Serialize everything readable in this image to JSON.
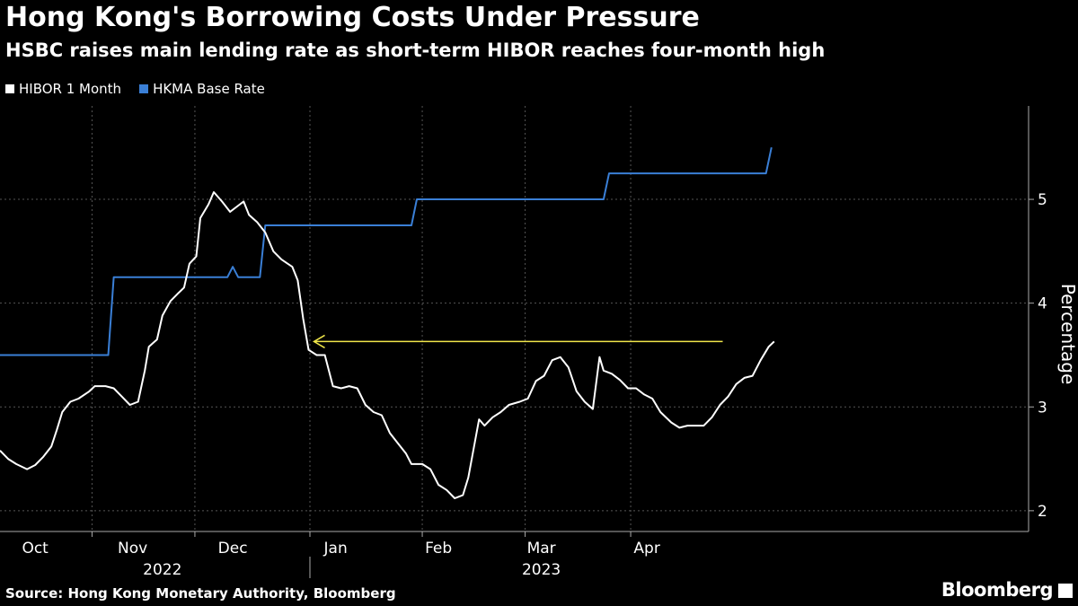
{
  "chart_data": {
    "type": "line",
    "title": "Hong Kong's Borrowing Costs Under Pressure",
    "subtitle": "HSBC raises main lending rate as short-term HIBOR reaches four-month high",
    "ylabel": "Percentage",
    "ylim": [
      1.8,
      5.9
    ],
    "yticks": [
      2,
      3,
      4,
      5
    ],
    "xlim": [
      0,
      38
    ],
    "month_labels": [
      {
        "label": "Oct",
        "x": 1.3
      },
      {
        "label": "Nov",
        "x": 4.9
      },
      {
        "label": "Dec",
        "x": 8.6
      },
      {
        "label": "Jan",
        "x": 12.4
      },
      {
        "label": "Feb",
        "x": 16.2
      },
      {
        "label": "Mar",
        "x": 20.0
      },
      {
        "label": "Apr",
        "x": 23.9
      }
    ],
    "year_labels": [
      {
        "label": "2022",
        "x": 6.0
      },
      {
        "label": "2023",
        "x": 20.0
      }
    ],
    "year_separator_x": 11.45,
    "month_separators_x": [
      3.4,
      7.2,
      11.45,
      15.6,
      19.4,
      23.3
    ],
    "legend_position": "top-left",
    "annotation": {
      "from_x": 11.6,
      "to_x": 26.7,
      "y": 3.63,
      "color": "#f0e64a"
    },
    "series": [
      {
        "name": "HIBOR 1 Month",
        "color": "#ffffff",
        "points": [
          [
            0,
            2.58
          ],
          [
            0.3,
            2.5
          ],
          [
            0.6,
            2.45
          ],
          [
            1.0,
            2.4
          ],
          [
            1.3,
            2.44
          ],
          [
            1.6,
            2.52
          ],
          [
            1.9,
            2.62
          ],
          [
            2.1,
            2.78
          ],
          [
            2.3,
            2.95
          ],
          [
            2.6,
            3.05
          ],
          [
            2.9,
            3.08
          ],
          [
            3.3,
            3.15
          ],
          [
            3.5,
            3.2
          ],
          [
            3.9,
            3.2
          ],
          [
            4.2,
            3.18
          ],
          [
            4.5,
            3.1
          ],
          [
            4.8,
            3.02
          ],
          [
            5.1,
            3.05
          ],
          [
            5.35,
            3.35
          ],
          [
            5.5,
            3.58
          ],
          [
            5.8,
            3.65
          ],
          [
            6.0,
            3.88
          ],
          [
            6.3,
            4.02
          ],
          [
            6.6,
            4.1
          ],
          [
            6.8,
            4.15
          ],
          [
            7.0,
            4.38
          ],
          [
            7.25,
            4.45
          ],
          [
            7.4,
            4.82
          ],
          [
            7.7,
            4.95
          ],
          [
            7.9,
            5.07
          ],
          [
            8.2,
            4.98
          ],
          [
            8.5,
            4.88
          ],
          [
            8.8,
            4.94
          ],
          [
            9.0,
            4.98
          ],
          [
            9.2,
            4.85
          ],
          [
            9.5,
            4.78
          ],
          [
            9.8,
            4.68
          ],
          [
            10.1,
            4.5
          ],
          [
            10.4,
            4.42
          ],
          [
            10.8,
            4.35
          ],
          [
            11.0,
            4.22
          ],
          [
            11.2,
            3.85
          ],
          [
            11.4,
            3.55
          ],
          [
            11.7,
            3.5
          ],
          [
            12.0,
            3.5
          ],
          [
            12.3,
            3.2
          ],
          [
            12.6,
            3.18
          ],
          [
            12.9,
            3.2
          ],
          [
            13.2,
            3.18
          ],
          [
            13.5,
            3.02
          ],
          [
            13.8,
            2.95
          ],
          [
            14.1,
            2.92
          ],
          [
            14.4,
            2.75
          ],
          [
            14.7,
            2.65
          ],
          [
            15.0,
            2.55
          ],
          [
            15.2,
            2.45
          ],
          [
            15.6,
            2.45
          ],
          [
            15.9,
            2.4
          ],
          [
            16.2,
            2.25
          ],
          [
            16.5,
            2.2
          ],
          [
            16.8,
            2.12
          ],
          [
            17.1,
            2.15
          ],
          [
            17.3,
            2.32
          ],
          [
            17.5,
            2.6
          ],
          [
            17.7,
            2.88
          ],
          [
            17.9,
            2.82
          ],
          [
            18.2,
            2.9
          ],
          [
            18.5,
            2.95
          ],
          [
            18.8,
            3.02
          ],
          [
            19.2,
            3.05
          ],
          [
            19.5,
            3.08
          ],
          [
            19.8,
            3.25
          ],
          [
            20.1,
            3.3
          ],
          [
            20.4,
            3.45
          ],
          [
            20.7,
            3.48
          ],
          [
            21.0,
            3.38
          ],
          [
            21.3,
            3.15
          ],
          [
            21.6,
            3.05
          ],
          [
            21.9,
            2.98
          ],
          [
            22.15,
            3.48
          ],
          [
            22.3,
            3.35
          ],
          [
            22.6,
            3.32
          ],
          [
            22.9,
            3.26
          ],
          [
            23.2,
            3.18
          ],
          [
            23.5,
            3.18
          ],
          [
            23.8,
            3.12
          ],
          [
            24.1,
            3.08
          ],
          [
            24.4,
            2.95
          ],
          [
            24.8,
            2.85
          ],
          [
            25.1,
            2.8
          ],
          [
            25.4,
            2.82
          ],
          [
            25.7,
            2.82
          ],
          [
            26.0,
            2.82
          ],
          [
            26.3,
            2.9
          ],
          [
            26.6,
            3.02
          ],
          [
            26.9,
            3.1
          ],
          [
            27.2,
            3.22
          ],
          [
            27.5,
            3.28
          ],
          [
            27.8,
            3.3
          ],
          [
            28.1,
            3.45
          ],
          [
            28.4,
            3.58
          ],
          [
            28.6,
            3.63
          ]
        ]
      },
      {
        "name": "HKMA Base Rate",
        "color": "#3a7fd6",
        "points": [
          [
            0,
            3.5
          ],
          [
            4.0,
            3.5
          ],
          [
            4.2,
            4.25
          ],
          [
            8.4,
            4.25
          ],
          [
            8.6,
            4.35
          ],
          [
            8.8,
            4.25
          ],
          [
            9.6,
            4.25
          ],
          [
            9.8,
            4.75
          ],
          [
            15.2,
            4.75
          ],
          [
            15.4,
            5.0
          ],
          [
            22.3,
            5.0
          ],
          [
            22.5,
            5.25
          ],
          [
            28.3,
            5.25
          ],
          [
            28.5,
            5.5
          ]
        ]
      }
    ]
  },
  "source_text": "Source: Hong Kong Monetary Authority, Bloomberg",
  "brand": "Bloomberg",
  "colors": {
    "background": "#000000",
    "grid": "#555555",
    "axis": "#aaaaaa"
  }
}
